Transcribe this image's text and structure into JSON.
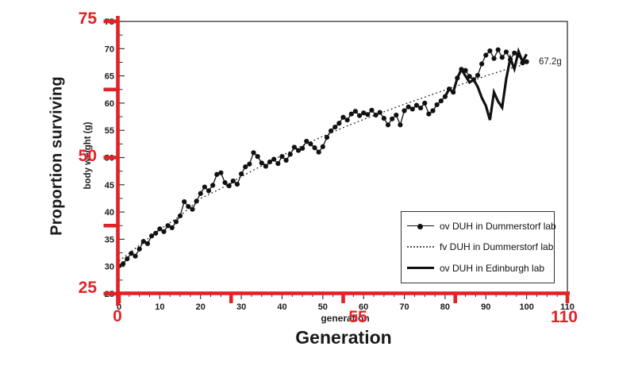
{
  "figure": {
    "y_axis_overlay_label": "Proportion surviving",
    "x_axis_overlay_label": "Generation",
    "overlay": {
      "color": "#e32227",
      "y_ticks": [
        {
          "label": "75",
          "value": 75
        },
        {
          "label": "50",
          "value": 50
        },
        {
          "label": "25",
          "value": 25
        }
      ],
      "y_minor_ticks": [
        62.5,
        37.5
      ],
      "x_ticks": [
        {
          "label": "0",
          "value": 0
        },
        {
          "label": "55",
          "value": 55
        },
        {
          "label": "110",
          "value": 110
        }
      ],
      "x_minor_ticks": [
        27.5,
        82.5
      ]
    }
  },
  "chart_data": {
    "type": "line",
    "title": "",
    "x_axis": {
      "label": "generation",
      "min": 0,
      "max": 110,
      "major_ticks": [
        0,
        10,
        20,
        30,
        40,
        50,
        60,
        70,
        80,
        90,
        100,
        110
      ],
      "minor_step": 2.5
    },
    "y_axis": {
      "label": "body weight (g)",
      "min": 25,
      "max": 75,
      "major_ticks": [
        25,
        30,
        35,
        40,
        45,
        50,
        55,
        60,
        65,
        70,
        75
      ],
      "minor_step": 2.5
    },
    "grid": "off",
    "legend_position": "lower right",
    "annotation": {
      "text": "67.2g",
      "x": 103,
      "y": 67.2
    },
    "series": [
      {
        "name": "ov DUH in Dummerstorf lab",
        "style": "line-markers",
        "x": {
          "start": 0,
          "step": 1
        },
        "values": [
          30.1,
          30.5,
          31.4,
          32.4,
          31.9,
          33.2,
          34.6,
          34.2,
          35.6,
          36.1,
          36.9,
          36.4,
          37.5,
          37.1,
          38.2,
          39.3,
          41.9,
          41.0,
          40.5,
          42.0,
          43.4,
          44.6,
          43.9,
          44.9,
          46.9,
          47.2,
          45.4,
          44.8,
          45.7,
          45.1,
          47.0,
          48.3,
          48.8,
          50.9,
          50.2,
          49.0,
          48.4,
          49.2,
          49.7,
          48.9,
          50.2,
          49.5,
          50.6,
          51.9,
          51.3,
          51.7,
          53.0,
          52.5,
          51.8,
          51.0,
          52.0,
          53.7,
          54.9,
          55.6,
          56.3,
          57.4,
          56.9,
          58.0,
          58.5,
          57.7,
          58.2,
          57.9,
          58.7,
          57.8,
          58.3,
          57.2,
          56.0,
          57.1,
          57.8,
          56.0,
          58.6,
          59.3,
          58.9,
          59.6,
          59.1,
          60.0,
          58.0,
          58.6,
          59.7,
          60.4,
          61.2,
          62.6,
          62.0,
          64.6,
          66.2,
          66.0,
          64.9,
          64.3,
          65.1,
          67.2,
          68.8,
          69.6,
          68.2,
          69.8,
          68.4,
          69.4,
          68.0,
          69.2,
          68.8,
          67.4,
          67.6
        ]
      },
      {
        "name": "fv DUH in Dummerstorf lab",
        "style": "dotted",
        "x": {
          "start": 0,
          "step": 5
        },
        "values": [
          31.0,
          33.9,
          36.8,
          39.3,
          42.5,
          44.3,
          46.5,
          48.5,
          50.4,
          52.2,
          53.9,
          55.5,
          57.0,
          58.4,
          59.8,
          61.1,
          62.4,
          63.7,
          65.0,
          66.2,
          67.2
        ]
      },
      {
        "name": "ov DUH in Edinburgh lab",
        "style": "thick",
        "x": {
          "start": 80,
          "step": 1
        },
        "values": [
          61.2,
          62.6,
          62.0,
          64.6,
          66.2,
          65.0,
          63.8,
          64.3,
          63.0,
          61.0,
          59.5,
          56.9,
          62.0,
          60.3,
          59.2,
          64.5,
          68.2,
          66.3,
          69.5,
          67.6,
          69.0
        ]
      }
    ]
  },
  "legend": {
    "items": [
      {
        "label": "ov DUH in Dummerstorf lab",
        "swatch": "line-with-marker"
      },
      {
        "label": "fv DUH in Dummerstorf lab",
        "swatch": "dotted-line"
      },
      {
        "label": "ov DUH in Edinburgh lab",
        "swatch": "thick-line"
      }
    ]
  }
}
